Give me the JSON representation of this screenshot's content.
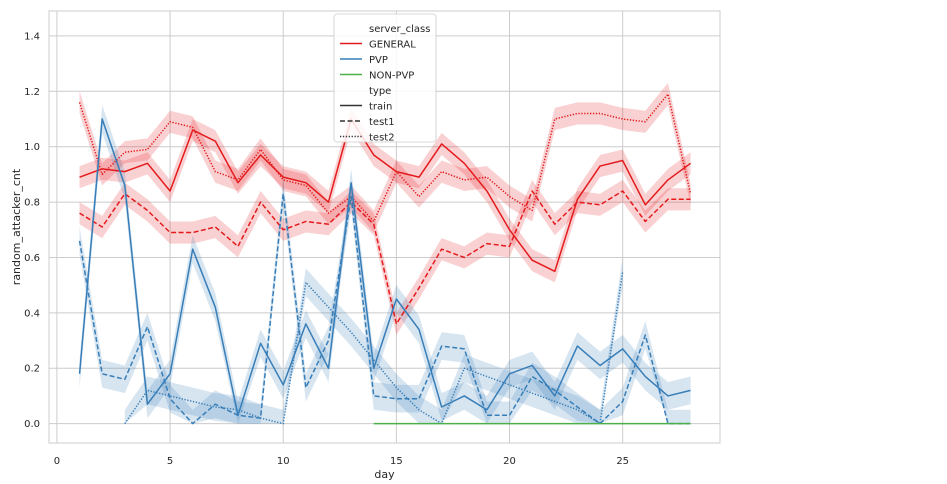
{
  "chart_data": {
    "type": "line",
    "xlabel": "day",
    "ylabel": "random_attacker_cnt",
    "xlim": [
      -0.35,
      29.3
    ],
    "ylim": [
      -0.07,
      1.49
    ],
    "xticks": [
      0,
      5,
      10,
      15,
      20,
      25
    ],
    "xtick_labels": [
      "0",
      "5",
      "10",
      "15",
      "20",
      "25"
    ],
    "yticks": [
      0.0,
      0.2,
      0.4,
      0.6,
      0.8,
      1.0,
      1.2,
      1.4
    ],
    "ytick_labels": [
      "0.0",
      "0.2",
      "0.4",
      "0.6",
      "0.8",
      "1.0",
      "1.2",
      "1.4"
    ],
    "grid": true,
    "legend": {
      "placement": "top-center",
      "hue_title": "server_class",
      "hue_entries": [
        {
          "label": "GENERAL",
          "color": "#e41a1c"
        },
        {
          "label": "PVP",
          "color": "#377eb8"
        },
        {
          "label": "NON-PVP",
          "color": "#4daf4a"
        }
      ],
      "style_title": "type",
      "style_entries": [
        {
          "label": "train",
          "dash": "solid"
        },
        {
          "label": "test1",
          "dash": "dashed"
        },
        {
          "label": "test2",
          "dash": "dotted"
        }
      ]
    },
    "series": [
      {
        "name": "GENERAL train",
        "color": "#e41a1c",
        "dash": "solid",
        "x": [
          1,
          2,
          3,
          4,
          5,
          6,
          7,
          8,
          9,
          10,
          11,
          12,
          13,
          14,
          15,
          16,
          17,
          18,
          19,
          20,
          21,
          22,
          23,
          24,
          25,
          26,
          27,
          28
        ],
        "values": [
          0.89,
          0.92,
          0.91,
          0.94,
          0.84,
          1.06,
          1.02,
          0.87,
          0.97,
          0.89,
          0.87,
          0.8,
          1.1,
          0.97,
          0.91,
          0.89,
          1.01,
          0.94,
          0.84,
          0.7,
          0.59,
          0.55,
          0.81,
          0.93,
          0.95,
          0.79,
          0.88,
          0.94
        ],
        "band": 0.04
      },
      {
        "name": "GENERAL test1",
        "color": "#e41a1c",
        "dash": "dashed",
        "x": [
          1,
          2,
          3,
          4,
          5,
          6,
          7,
          8,
          9,
          10,
          11,
          12,
          13,
          14,
          15,
          16,
          17,
          18,
          19,
          20,
          21,
          22,
          23,
          24,
          25,
          26,
          27,
          28
        ],
        "values": [
          0.76,
          0.71,
          0.83,
          0.77,
          0.69,
          0.69,
          0.71,
          0.64,
          0.8,
          0.7,
          0.73,
          0.72,
          0.8,
          0.72,
          0.36,
          0.49,
          0.63,
          0.6,
          0.65,
          0.64,
          0.84,
          0.72,
          0.8,
          0.79,
          0.84,
          0.73,
          0.81,
          0.81
        ],
        "band": 0.04
      },
      {
        "name": "GENERAL test2",
        "color": "#e41a1c",
        "dash": "dotted",
        "x": [
          1,
          2,
          3,
          4,
          5,
          6,
          7,
          8,
          9,
          10,
          11,
          12,
          13,
          14,
          15,
          16,
          17,
          18,
          19,
          20,
          21,
          22,
          23,
          24,
          25,
          26,
          27,
          28
        ],
        "values": [
          1.16,
          0.9,
          0.98,
          0.99,
          1.09,
          1.07,
          0.91,
          0.88,
          0.99,
          0.88,
          0.86,
          0.76,
          0.82,
          0.73,
          0.91,
          0.82,
          0.91,
          0.88,
          0.89,
          0.82,
          0.77,
          1.1,
          1.12,
          1.12,
          1.1,
          1.09,
          1.19,
          0.83
        ],
        "band": 0.04
      },
      {
        "name": "PVP train",
        "color": "#377eb8",
        "dash": "solid",
        "x": [
          1,
          2,
          3,
          4,
          5,
          6,
          7,
          8,
          9,
          10,
          11,
          12,
          13,
          14,
          15,
          16,
          17,
          18,
          19,
          20,
          21,
          22,
          23,
          24,
          25,
          26,
          27,
          28
        ],
        "values": [
          0.18,
          1.1,
          0.86,
          0.07,
          0.18,
          0.63,
          0.42,
          0.03,
          0.29,
          0.14,
          0.36,
          0.2,
          0.87,
          0.2,
          0.45,
          0.34,
          0.06,
          0.1,
          0.05,
          0.18,
          0.21,
          0.1,
          0.28,
          0.21,
          0.27,
          0.17,
          0.1,
          0.12
        ],
        "band": 0.05
      },
      {
        "name": "PVP test1",
        "color": "#377eb8",
        "dash": "dashed",
        "x": [
          1,
          2,
          3,
          4,
          5,
          6,
          7,
          8,
          9,
          10,
          11,
          12,
          13,
          14,
          15,
          16,
          17,
          18,
          19,
          20,
          21,
          22,
          23,
          24,
          25,
          26,
          27,
          28
        ],
        "values": [
          0.66,
          0.18,
          0.16,
          0.35,
          0.09,
          0.0,
          0.07,
          0.03,
          0.02,
          0.83,
          0.13,
          0.3,
          0.82,
          0.1,
          0.09,
          0.09,
          0.28,
          0.27,
          0.03,
          0.03,
          0.17,
          0.12,
          0.06,
          0.0,
          0.08,
          0.32,
          0.0,
          0.0
        ],
        "band": 0.05
      },
      {
        "name": "PVP test2",
        "color": "#377eb8",
        "dash": "dotted",
        "x": [
          3,
          4,
          5,
          6,
          7,
          8,
          9,
          10,
          11,
          12,
          13,
          14,
          15,
          16,
          17,
          18,
          19,
          20,
          21,
          22,
          23,
          24,
          25
        ],
        "values": [
          0.0,
          0.12,
          0.1,
          0.08,
          0.06,
          0.05,
          0.02,
          0.0,
          0.51,
          0.42,
          0.33,
          0.23,
          0.13,
          0.05,
          0.0,
          0.2,
          0.17,
          0.14,
          0.11,
          0.08,
          0.05,
          0.0,
          0.55
        ],
        "band": 0.05
      },
      {
        "name": "NON-PVP train",
        "color": "#4daf4a",
        "dash": "solid",
        "x": [
          14,
          15,
          16,
          17,
          18,
          19,
          20,
          21,
          22,
          23,
          24,
          25,
          26,
          27,
          28
        ],
        "values": [
          0.0,
          0.0,
          0.0,
          0.0,
          0.0,
          0.0,
          0.0,
          0.0,
          0.0,
          0.0,
          0.0,
          0.0,
          0.0,
          0.0,
          0.0
        ],
        "band": 0
      }
    ]
  }
}
